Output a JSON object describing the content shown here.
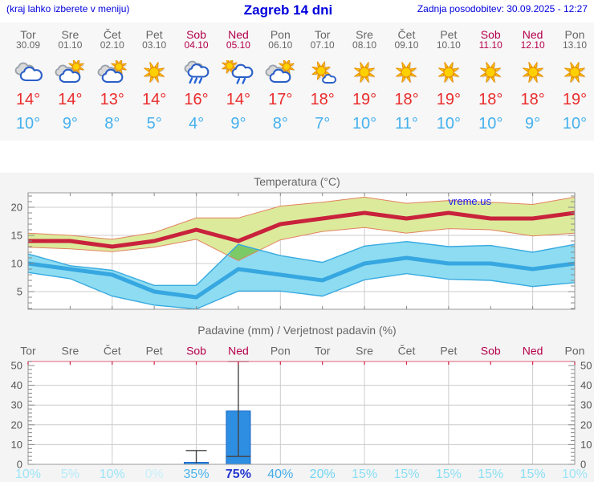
{
  "header": {
    "left": "(kraj lahko izberete v meniju)",
    "title": "Zagreb 14 dni",
    "updated": "Zadnja posodobitev: 30.09.2025 - 12:27"
  },
  "colors": {
    "header_blue": "#0000dd",
    "day_gray": "#666666",
    "weekend_red": "#b4004b",
    "tmax_red": "#ea2d2d",
    "tmin_blue": "#45b1ee",
    "panel_bg": "#f4f4f4",
    "grid": "#cccccc",
    "frame": "#999999",
    "band_max_fill": "#dcea9c",
    "band_max_edge": "#e2825e",
    "band_min_fill": "#8edcf2",
    "band_min_edge": "#38aadf",
    "band_overlap": "#7cc968",
    "line_max": "#c9223c",
    "line_min": "#36a7e0",
    "bar_fill": "#2e8fe2",
    "bar_edge": "#1565c8",
    "whisker": "#444444",
    "precip_top_border": "#e87d95",
    "precip_top_tick": "#cc2244",
    "watermark_blue": "#1a1aee"
  },
  "days": [
    {
      "name": "Tor",
      "date": "30.09",
      "weekend": false,
      "icon": "cloudy",
      "tmax": "14°",
      "tmin": "10°",
      "prob": "10%",
      "prob_color": "#9ce5f8",
      "prob_bold": false
    },
    {
      "name": "Sre",
      "date": "01.10",
      "weekend": false,
      "icon": "partly",
      "tmax": "14°",
      "tmin": "9°",
      "prob": "5%",
      "prob_color": "#b6ebfa",
      "prob_bold": false
    },
    {
      "name": "Čet",
      "date": "02.10",
      "weekend": false,
      "icon": "partly",
      "tmax": "13°",
      "tmin": "8°",
      "prob": "10%",
      "prob_color": "#9ce5f8",
      "prob_bold": false
    },
    {
      "name": "Pet",
      "date": "03.10",
      "weekend": false,
      "icon": "sunny",
      "tmax": "14°",
      "tmin": "5°",
      "prob": "0%",
      "prob_color": "#c9f0fb",
      "prob_bold": false
    },
    {
      "name": "Sob",
      "date": "04.10",
      "weekend": true,
      "icon": "rain",
      "tmax": "16°",
      "tmin": "4°",
      "prob": "35%",
      "prob_color": "#4ab2ec",
      "prob_bold": false
    },
    {
      "name": "Ned",
      "date": "05.10",
      "weekend": true,
      "icon": "sunrain",
      "tmax": "14°",
      "tmin": "9°",
      "prob": "75%",
      "prob_color": "#2438d0",
      "prob_bold": true
    },
    {
      "name": "Pon",
      "date": "06.10",
      "weekend": false,
      "icon": "partly",
      "tmax": "17°",
      "tmin": "8°",
      "prob": "40%",
      "prob_color": "#44adeb",
      "prob_bold": false
    },
    {
      "name": "Tor",
      "date": "07.10",
      "weekend": false,
      "icon": "sunsmallcloud",
      "tmax": "18°",
      "tmin": "7°",
      "prob": "20%",
      "prob_color": "#6fd6f2",
      "prob_bold": false
    },
    {
      "name": "Sre",
      "date": "08.10",
      "weekend": false,
      "icon": "sunny",
      "tmax": "19°",
      "tmin": "10°",
      "prob": "15%",
      "prob_color": "#8adff5",
      "prob_bold": false
    },
    {
      "name": "Čet",
      "date": "09.10",
      "weekend": false,
      "icon": "sunny",
      "tmax": "18°",
      "tmin": "11°",
      "prob": "15%",
      "prob_color": "#8adff5",
      "prob_bold": false
    },
    {
      "name": "Pet",
      "date": "10.10",
      "weekend": false,
      "icon": "sunny",
      "tmax": "19°",
      "tmin": "10°",
      "prob": "15%",
      "prob_color": "#8adff5",
      "prob_bold": false
    },
    {
      "name": "Sob",
      "date": "11.10",
      "weekend": true,
      "icon": "sunny",
      "tmax": "18°",
      "tmin": "10°",
      "prob": "15%",
      "prob_color": "#8adff5",
      "prob_bold": false
    },
    {
      "name": "Ned",
      "date": "12.10",
      "weekend": true,
      "icon": "sunny",
      "tmax": "18°",
      "tmin": "9°",
      "prob": "15%",
      "prob_color": "#8adff5",
      "prob_bold": false
    },
    {
      "name": "Pon",
      "date": "13.10",
      "weekend": false,
      "icon": "sunny",
      "tmax": "19°",
      "tmin": "10°",
      "prob": "10%",
      "prob_color": "#9ce5f8",
      "prob_bold": false
    }
  ],
  "chart_data": [
    {
      "type": "line",
      "title": "Temperatura (°C)",
      "watermark": "vreme.us",
      "ylim": [
        1.86,
        22.57
      ],
      "yticks": [
        5,
        10,
        15,
        20
      ],
      "grid_day_indices": [
        2,
        4,
        6,
        8,
        10,
        12
      ],
      "series": [
        {
          "name": "tmax",
          "values": [
            14,
            14,
            13,
            14,
            16,
            14,
            17,
            18,
            19,
            18,
            19,
            18,
            18,
            19
          ]
        },
        {
          "name": "tmax_upper",
          "values": [
            15.4,
            15,
            14.3,
            15.5,
            18.1,
            18.1,
            20.2,
            20.9,
            21.8,
            20.7,
            21.2,
            20.9,
            20.5,
            21.8
          ]
        },
        {
          "name": "tmax_lower",
          "values": [
            12.9,
            12.6,
            12.1,
            12.9,
            14.3,
            10.5,
            14.2,
            15.7,
            16.4,
            15.4,
            16.2,
            16,
            14.9,
            15.4
          ]
        },
        {
          "name": "tmin",
          "values": [
            10,
            9,
            8,
            5,
            4,
            9,
            8,
            7,
            10,
            11,
            10,
            10,
            9,
            10
          ]
        },
        {
          "name": "tmin_upper",
          "values": [
            11.7,
            9.6,
            8.8,
            6.1,
            6.1,
            13.4,
            11.4,
            10.2,
            13.1,
            13.9,
            13,
            13.2,
            12,
            13.4
          ]
        },
        {
          "name": "tmin_lower",
          "values": [
            8.4,
            7.3,
            4.2,
            2.6,
            1.9,
            5.1,
            5.1,
            4.2,
            7.1,
            8.2,
            7.2,
            7,
            5.9,
            6.6
          ]
        }
      ]
    },
    {
      "type": "bar",
      "title": "Padavine (mm) / Verjetnost padavin (%)",
      "ylim": [
        0,
        52
      ],
      "yticks": [
        0,
        10,
        20,
        30,
        40,
        50
      ],
      "grid_day_indices": [
        2,
        4,
        6,
        8,
        10,
        12
      ],
      "bars": [
        {
          "day_index": 4,
          "value": 1,
          "whisker_low": 0.5,
          "whisker_high": 7
        },
        {
          "day_index": 5,
          "value": 27,
          "whisker_low": 4,
          "whisker_high": 52
        }
      ]
    }
  ]
}
